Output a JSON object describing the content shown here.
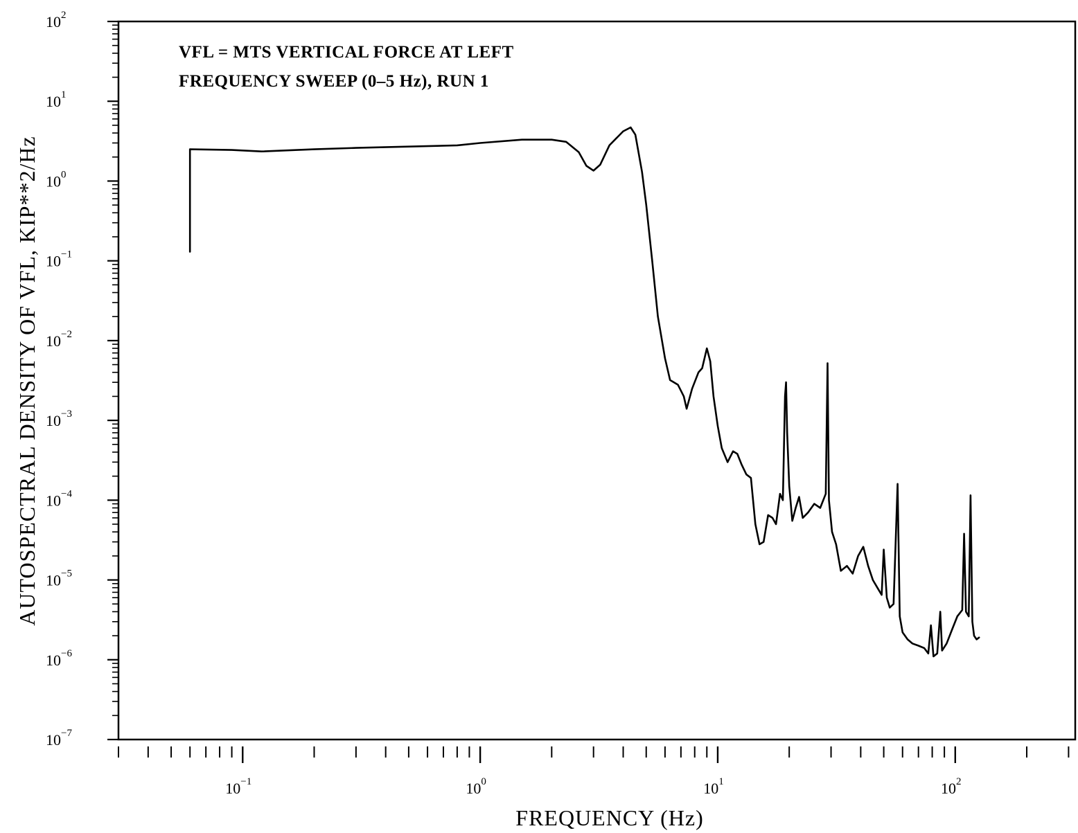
{
  "chart_data": {
    "type": "line",
    "title": "",
    "annotations": [
      "VFL = MTS VERTICAL FORCE AT LEFT",
      "FREQUENCY SWEEP (0–5 Hz), RUN 1"
    ],
    "xlabel": "FREQUENCY (Hz)",
    "ylabel": "AUTOSPECTRAL DENSITY OF VFL, KIP**2/Hz",
    "xscale": "log",
    "yscale": "log",
    "xlim": [
      0.03,
      320
    ],
    "ylim": [
      1e-07,
      100
    ],
    "grid": false,
    "legend": "none",
    "x_ticks": [
      {
        "base": "10",
        "exp": "−1"
      },
      {
        "base": "10",
        "exp": "0"
      },
      {
        "base": "10",
        "exp": "1"
      },
      {
        "base": "10",
        "exp": "2"
      }
    ],
    "y_ticks": [
      {
        "base": "10",
        "exp": "−7"
      },
      {
        "base": "10",
        "exp": "−6"
      },
      {
        "base": "10",
        "exp": "−5"
      },
      {
        "base": "10",
        "exp": "−4"
      },
      {
        "base": "10",
        "exp": "−3"
      },
      {
        "base": "10",
        "exp": "−2"
      },
      {
        "base": "10",
        "exp": "−1"
      },
      {
        "base": "10",
        "exp": "0"
      },
      {
        "base": "10",
        "exp": "1"
      },
      {
        "base": "10",
        "exp": "2"
      }
    ],
    "series": [
      {
        "color": "#000000",
        "points": [
          [
            0.06,
            0.13
          ],
          [
            0.06,
            2.5
          ],
          [
            0.09,
            2.45
          ],
          [
            0.12,
            2.35
          ],
          [
            0.2,
            2.5
          ],
          [
            0.3,
            2.6
          ],
          [
            0.5,
            2.7
          ],
          [
            0.8,
            2.8
          ],
          [
            1.0,
            3.0
          ],
          [
            1.5,
            3.3
          ],
          [
            2.0,
            3.3
          ],
          [
            2.3,
            3.1
          ],
          [
            2.6,
            2.3
          ],
          [
            2.8,
            1.55
          ],
          [
            3.0,
            1.35
          ],
          [
            3.2,
            1.6
          ],
          [
            3.5,
            2.8
          ],
          [
            4.0,
            4.2
          ],
          [
            4.3,
            4.7
          ],
          [
            4.5,
            3.8
          ],
          [
            4.8,
            1.3
          ],
          [
            5.0,
            0.5
          ],
          [
            5.3,
            0.1
          ],
          [
            5.6,
            0.02
          ],
          [
            6.0,
            0.006
          ],
          [
            6.3,
            0.0032
          ],
          [
            6.8,
            0.0028
          ],
          [
            7.2,
            0.002
          ],
          [
            7.4,
            0.0014
          ],
          [
            7.8,
            0.0025
          ],
          [
            8.3,
            0.004
          ],
          [
            8.6,
            0.0045
          ],
          [
            9.0,
            0.008
          ],
          [
            9.3,
            0.0055
          ],
          [
            9.6,
            0.002
          ],
          [
            10.0,
            0.00085
          ],
          [
            10.4,
            0.00045
          ],
          [
            11.0,
            0.0003
          ],
          [
            11.6,
            0.00041
          ],
          [
            12.1,
            0.00038
          ],
          [
            12.6,
            0.00028
          ],
          [
            13.2,
            0.00021
          ],
          [
            13.8,
            0.00019
          ],
          [
            14.4,
            5e-05
          ],
          [
            15.0,
            2.8e-05
          ],
          [
            15.6,
            3e-05
          ],
          [
            16.3,
            6.5e-05
          ],
          [
            17.0,
            6e-05
          ],
          [
            17.6,
            5e-05
          ],
          [
            18.3,
            0.00012
          ],
          [
            18.8,
            0.0001
          ],
          [
            19.2,
            0.002
          ],
          [
            19.4,
            0.003
          ],
          [
            19.6,
            0.0007
          ],
          [
            20.0,
            0.00015
          ],
          [
            20.6,
            5.5e-05
          ],
          [
            21.3,
            8e-05
          ],
          [
            22.0,
            0.00011
          ],
          [
            22.8,
            6e-05
          ],
          [
            24.0,
            7e-05
          ],
          [
            25.5,
            9e-05
          ],
          [
            27.0,
            8e-05
          ],
          [
            28.5,
            0.00012
          ],
          [
            29.0,
            0.0052
          ],
          [
            29.4,
            0.0001
          ],
          [
            30.3,
            4e-05
          ],
          [
            31.5,
            2.8e-05
          ],
          [
            33.0,
            1.3e-05
          ],
          [
            35.0,
            1.5e-05
          ],
          [
            37.0,
            1.2e-05
          ],
          [
            39.0,
            2e-05
          ],
          [
            41.0,
            2.6e-05
          ],
          [
            43.0,
            1.5e-05
          ],
          [
            45.0,
            1e-05
          ],
          [
            47.0,
            8e-06
          ],
          [
            49.0,
            6.5e-06
          ],
          [
            50.0,
            2.4e-05
          ],
          [
            51.5,
            6e-06
          ],
          [
            53.0,
            4.5e-06
          ],
          [
            55.0,
            5e-06
          ],
          [
            57.2,
            0.00016
          ],
          [
            58.4,
            3.5e-06
          ],
          [
            60.0,
            2.2e-06
          ],
          [
            63.0,
            1.8e-06
          ],
          [
            66.0,
            1.6e-06
          ],
          [
            70.0,
            1.5e-06
          ],
          [
            74.0,
            1.4e-06
          ],
          [
            77.0,
            1.2e-06
          ],
          [
            79.0,
            2.7e-06
          ],
          [
            81.0,
            1.1e-06
          ],
          [
            84.0,
            1.2e-06
          ],
          [
            86.5,
            4e-06
          ],
          [
            88.0,
            1.3e-06
          ],
          [
            92.0,
            1.6e-06
          ],
          [
            97.0,
            2.4e-06
          ],
          [
            102.0,
            3.5e-06
          ],
          [
            107.0,
            4.2e-06
          ],
          [
            109.0,
            3.8e-05
          ],
          [
            111.0,
            4e-06
          ],
          [
            114.0,
            3.5e-06
          ],
          [
            116.0,
            0.000115
          ],
          [
            118.0,
            3e-06
          ],
          [
            120.0,
            2e-06
          ],
          [
            123.0,
            1.8e-06
          ],
          [
            126.0,
            1.9e-06
          ]
        ]
      }
    ]
  }
}
